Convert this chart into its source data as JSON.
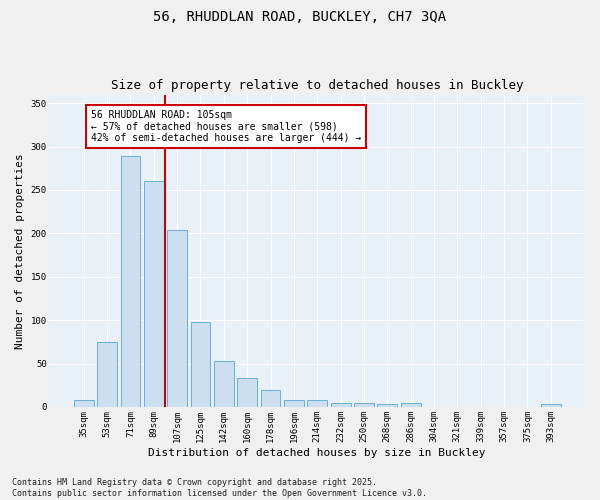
{
  "title_line1": "56, RHUDDLAN ROAD, BUCKLEY, CH7 3QA",
  "title_line2": "Size of property relative to detached houses in Buckley",
  "xlabel": "Distribution of detached houses by size in Buckley",
  "ylabel": "Number of detached properties",
  "bar_color": "#ccdff0",
  "bar_edge_color": "#6aaed6",
  "categories": [
    "35sqm",
    "53sqm",
    "71sqm",
    "89sqm",
    "107sqm",
    "125sqm",
    "142sqm",
    "160sqm",
    "178sqm",
    "196sqm",
    "214sqm",
    "232sqm",
    "250sqm",
    "268sqm",
    "286sqm",
    "304sqm",
    "321sqm",
    "339sqm",
    "357sqm",
    "375sqm",
    "393sqm"
  ],
  "values": [
    8,
    75,
    289,
    260,
    204,
    98,
    53,
    33,
    20,
    8,
    8,
    4,
    4,
    3,
    4,
    0,
    0,
    0,
    0,
    0,
    3
  ],
  "vline_index": 4,
  "vline_color": "#cc0000",
  "annotation_text": "56 RHUDDLAN ROAD: 105sqm\n← 57% of detached houses are smaller (598)\n42% of semi-detached houses are larger (444) →",
  "annotation_box_color": "#ffffff",
  "annotation_box_edge": "#cc0000",
  "ylim": [
    0,
    360
  ],
  "yticks": [
    0,
    50,
    100,
    150,
    200,
    250,
    300,
    350
  ],
  "background_color": "#e8f0f8",
  "grid_color": "#ffffff",
  "fig_background": "#f0f0f0",
  "footer": "Contains HM Land Registry data © Crown copyright and database right 2025.\nContains public sector information licensed under the Open Government Licence v3.0.",
  "title_fontsize": 10,
  "subtitle_fontsize": 9,
  "axis_label_fontsize": 8,
  "tick_fontsize": 6.5,
  "annotation_fontsize": 7,
  "footer_fontsize": 6
}
